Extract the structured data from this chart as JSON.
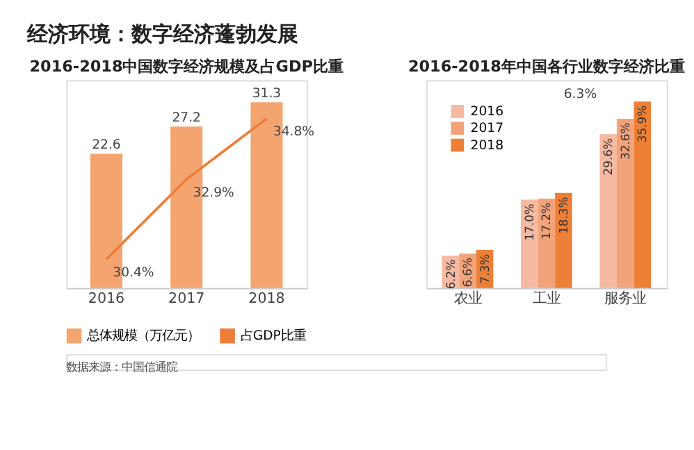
{
  "chart_data": [
    {
      "type": "bar",
      "title": "2016-2018中国数字经济规模及占GDP比重",
      "categories": [
        "2016",
        "2017",
        "2018"
      ],
      "tick_labels": "x",
      "grid": false,
      "legend": "bottom",
      "series": [
        {
          "name": "总体规模（万亿元）",
          "color": "#f4a56f",
          "values": [
            22.6,
            27.2,
            31.3
          ],
          "value_labels": [
            "22.6",
            "27.2",
            "31.3"
          ]
        },
        {
          "name": "占GDP比重",
          "type": "line",
          "axis": "y2",
          "color": "#ee7d3a",
          "values": [
            30.4,
            32.9,
            34.8
          ],
          "value_labels": [
            "30.4%",
            "32.9%",
            "34.8%"
          ]
        }
      ]
    },
    {
      "type": "bar",
      "title": "2016-2018年中国各行业数字经济比重",
      "categories": [
        "农业",
        "工业",
        "服务业"
      ],
      "tick_labels": "x",
      "grid": false,
      "legend": "top left",
      "annotations": [
        "6.3%"
      ],
      "series": [
        {
          "name": "2016",
          "color": "#f6b9a2",
          "values": [
            6.2,
            17.0,
            29.6
          ],
          "value_labels": [
            "6.2%",
            "17.0%",
            "29.6%"
          ]
        },
        {
          "name": "2017",
          "color": "#f3a37a",
          "values": [
            6.6,
            17.2,
            32.6
          ],
          "value_labels": [
            "6.6%",
            "17.2%",
            "32.6%"
          ]
        },
        {
          "name": "2018",
          "color": "#ee7f36",
          "values": [
            7.3,
            18.3,
            35.9
          ],
          "value_labels": [
            "7.3%",
            "18.3%",
            "35.9%"
          ]
        }
      ]
    },
    {
      "type": "other",
      "title": "经济环境：数字经济蓬勃发展",
      "annotations": [
        "数据来源：中国信通院"
      ]
    }
  ]
}
